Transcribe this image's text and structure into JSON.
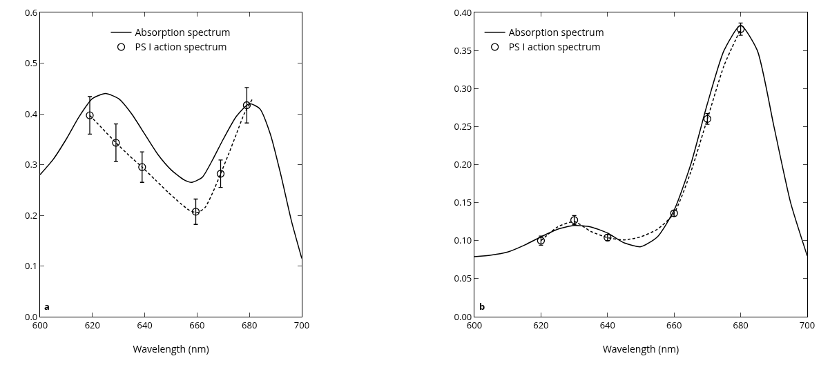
{
  "chart_data": [
    {
      "type": "line",
      "xlabel": "Wavelength (nm)",
      "xlim": [
        600,
        700
      ],
      "xticks": [
        600,
        620,
        640,
        660,
        680,
        700
      ],
      "ylim": [
        0,
        0.6
      ],
      "yticks": [
        {
          "value": 0,
          "label": "0.0"
        },
        0.1,
        0.2,
        0.3,
        0.4,
        0.5,
        0.6
      ],
      "grid": false,
      "legend": "top",
      "annotations": [
        "a"
      ],
      "series": [
        {
          "name": "Absorption spectrum",
          "color": "#000000",
          "line_style": "solid",
          "marker": "none",
          "x": [
            600,
            605,
            610,
            615,
            620,
            625,
            630,
            635,
            640,
            645,
            650,
            655,
            658,
            662,
            666,
            670,
            675,
            680,
            684,
            688,
            692,
            696,
            700
          ],
          "values": [
            0.28,
            0.31,
            0.35,
            0.395,
            0.43,
            0.44,
            0.43,
            0.4,
            0.36,
            0.32,
            0.29,
            0.27,
            0.265,
            0.275,
            0.31,
            0.35,
            0.395,
            0.42,
            0.41,
            0.36,
            0.28,
            0.19,
            0.115
          ]
        },
        {
          "color": "#000000",
          "line_style": "dashed",
          "marker": "none",
          "x": [
            619,
            624,
            629,
            634,
            639,
            644,
            649,
            654,
            657,
            660,
            663,
            666,
            669,
            672,
            675,
            678,
            681
          ],
          "values": [
            0.397,
            0.37,
            0.343,
            0.318,
            0.295,
            0.27,
            0.245,
            0.222,
            0.21,
            0.205,
            0.215,
            0.245,
            0.282,
            0.32,
            0.36,
            0.4,
            0.428
          ]
        },
        {
          "type": "scatter",
          "name": "PS I action spectrum",
          "color": "#000000",
          "marker": "circle",
          "x": [
            619,
            629,
            639,
            659.5,
            669,
            679
          ],
          "values": [
            0.397,
            0.343,
            0.295,
            0.207,
            0.282,
            0.417
          ],
          "errors": [
            0.037,
            0.037,
            0.03,
            0.025,
            0.027,
            0.035
          ]
        }
      ]
    },
    {
      "type": "line",
      "xlabel": "Wavelength (nm)",
      "xlim": [
        600,
        700
      ],
      "xticks": [
        600,
        620,
        640,
        660,
        680,
        700
      ],
      "ylim": [
        0,
        0.4
      ],
      "yticks": [
        {
          "value": 0,
          "label": "0.00"
        },
        0.05,
        {
          "value": 0.1,
          "label": "0.10"
        },
        0.15,
        {
          "value": 0.2,
          "label": "0.20"
        },
        0.25,
        {
          "value": 0.3,
          "label": "0.30"
        },
        0.35,
        {
          "value": 0.4,
          "label": "0.40"
        }
      ],
      "grid": false,
      "legend": "top left",
      "annotations": [
        "b"
      ],
      "series": [
        {
          "name": "Absorption spectrum",
          "color": "#000000",
          "line_style": "solid",
          "marker": "none",
          "x": [
            600,
            605,
            610,
            615,
            620,
            625,
            630,
            635,
            640,
            645,
            650,
            655,
            660,
            665,
            670,
            675,
            680,
            685,
            690,
            695,
            700
          ],
          "values": [
            0.079,
            0.081,
            0.085,
            0.094,
            0.105,
            0.115,
            0.12,
            0.118,
            0.11,
            0.097,
            0.092,
            0.105,
            0.14,
            0.2,
            0.28,
            0.35,
            0.383,
            0.35,
            0.25,
            0.15,
            0.08
          ]
        },
        {
          "color": "#000000",
          "line_style": "dashed",
          "marker": "none",
          "x": [
            620,
            625,
            630,
            635,
            640,
            645,
            650,
            655,
            660,
            665,
            670,
            675,
            680
          ],
          "values": [
            0.1,
            0.118,
            0.125,
            0.112,
            0.104,
            0.101,
            0.105,
            0.115,
            0.136,
            0.19,
            0.26,
            0.33,
            0.378
          ]
        },
        {
          "type": "scatter",
          "name": "PS I action spectrum",
          "color": "#000000",
          "marker": "circle",
          "x": [
            620,
            630,
            640,
            660,
            670,
            680
          ],
          "values": [
            0.1,
            0.127,
            0.104,
            0.136,
            0.26,
            0.378
          ],
          "errors": [
            0.006,
            0.006,
            0.004,
            0.004,
            0.007,
            0.008
          ]
        }
      ]
    }
  ]
}
